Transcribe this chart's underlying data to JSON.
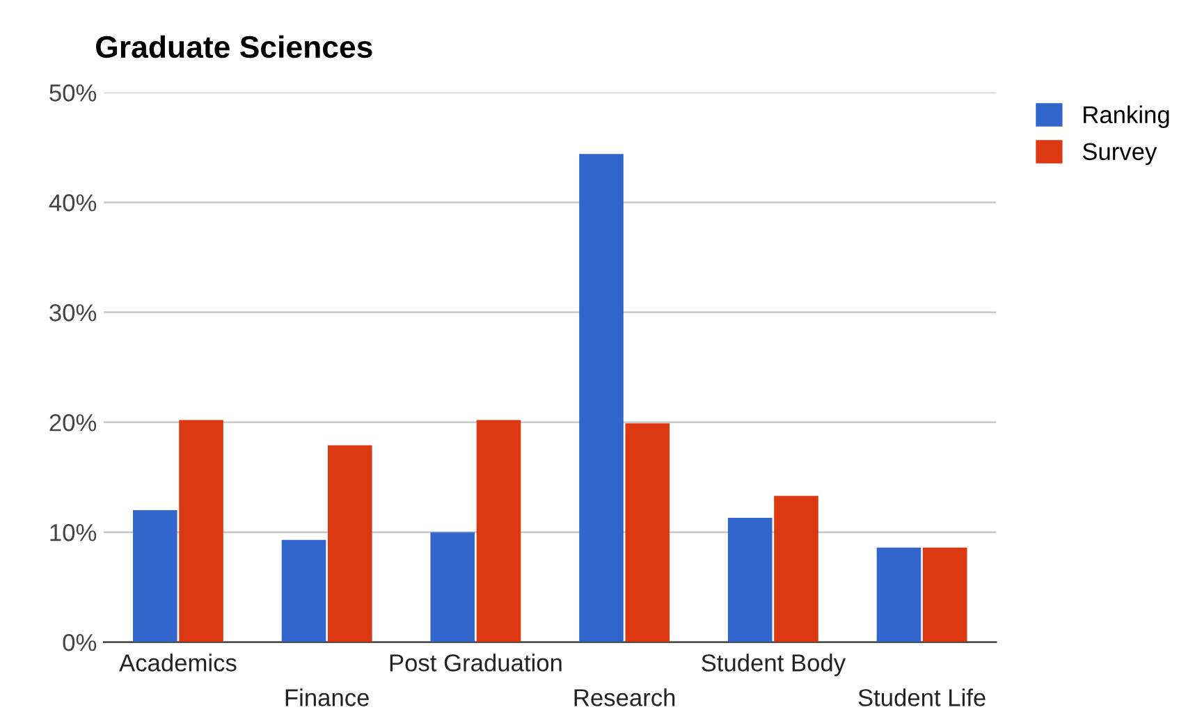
{
  "chart_data": {
    "type": "bar",
    "title": "Graduate Sciences",
    "categories": [
      "Academics",
      "Finance",
      "Post Graduation",
      "Research",
      "Student Body",
      "Student Life"
    ],
    "series": [
      {
        "name": "Ranking",
        "color": "#3366cc",
        "values": [
          12,
          9.3,
          10,
          44.4,
          11.3,
          8.6
        ]
      },
      {
        "name": "Survey",
        "color": "#dc3912",
        "values": [
          20.2,
          17.9,
          20.2,
          19.9,
          13.3,
          8.6
        ]
      }
    ],
    "ylim": [
      0,
      50
    ],
    "yticks": [
      {
        "value": 0,
        "label": "0%"
      },
      {
        "value": 10,
        "label": "10%"
      },
      {
        "value": 20,
        "label": "20%"
      },
      {
        "value": 30,
        "label": "30%"
      },
      {
        "value": 40,
        "label": "40%"
      },
      {
        "value": 50,
        "label": "50%"
      }
    ],
    "grid": "y",
    "legend": "top right"
  }
}
